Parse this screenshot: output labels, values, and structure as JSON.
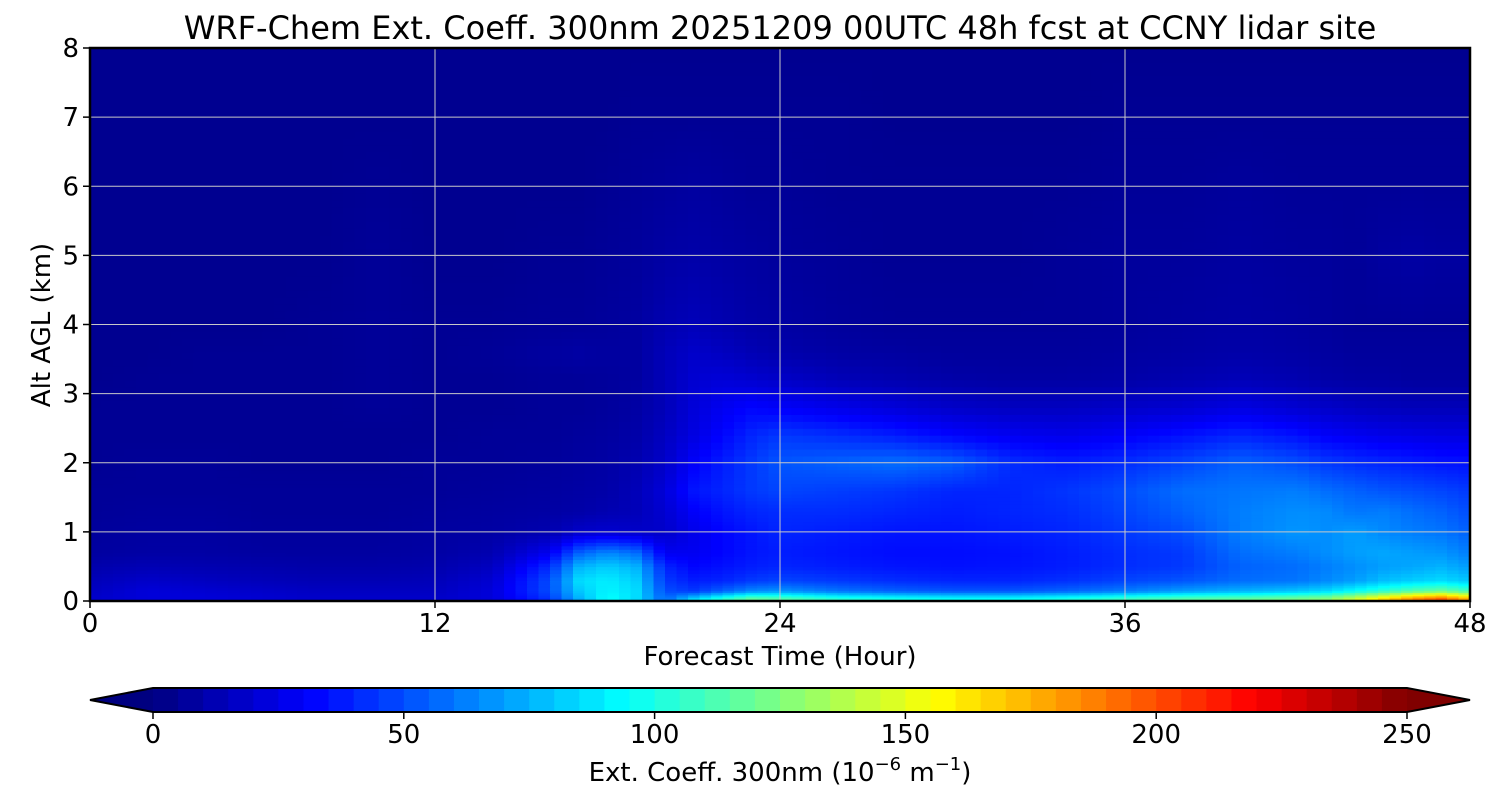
{
  "chart_data": {
    "type": "heatmap",
    "title": "WRF-Chem Ext. Coeff. 300nm  20251209 00UTC 48h fcst at CCNY lidar site",
    "xlabel": "Forecast Time (Hour)",
    "ylabel": "Alt AGL (km)",
    "xlim": [
      0,
      48
    ],
    "ylim": [
      0,
      8
    ],
    "xticks": [
      0,
      12,
      24,
      36,
      48
    ],
    "yticks": [
      0,
      1,
      2,
      3,
      4,
      5,
      6,
      7,
      8
    ],
    "grid": true,
    "colormap": "jet",
    "colorbar": {
      "label_main": "Ext. Coeff. 300nm  (10",
      "label_exp1": "−6",
      "label_mid": " m",
      "label_exp2": "−1",
      "label_end": ")",
      "ticks": [
        0,
        50,
        100,
        150,
        200,
        250
      ],
      "range": [
        0,
        250
      ],
      "extend": "both",
      "orientation": "horizontal"
    },
    "x": [
      0,
      2,
      4,
      6,
      8,
      10,
      12,
      14,
      16,
      17,
      18,
      19,
      20,
      21,
      22,
      23,
      24,
      26,
      28,
      30,
      32,
      34,
      36,
      38,
      40,
      42,
      43,
      44,
      45,
      46,
      47,
      48
    ],
    "y": [
      0,
      0.05,
      0.15,
      0.3,
      0.5,
      0.7,
      1.0,
      1.3,
      1.6,
      2.0,
      2.4,
      2.8,
      3.2,
      3.6,
      4.0,
      5.0,
      6.0,
      7.0,
      8.0
    ],
    "values": [
      [
        18,
        22,
        22,
        20,
        18,
        18,
        18,
        20,
        40,
        70,
        95,
        85,
        55,
        95,
        110,
        120,
        118,
        110,
        105,
        100,
        100,
        105,
        112,
        118,
        120,
        125,
        130,
        150,
        175,
        195,
        215,
        180
      ],
      [
        18,
        22,
        22,
        20,
        18,
        18,
        18,
        22,
        45,
        75,
        95,
        85,
        55,
        80,
        100,
        115,
        112,
        100,
        95,
        92,
        92,
        97,
        105,
        112,
        115,
        120,
        125,
        140,
        160,
        180,
        190,
        170
      ],
      [
        16,
        22,
        20,
        18,
        16,
        16,
        16,
        22,
        50,
        80,
        92,
        85,
        50,
        45,
        55,
        65,
        68,
        60,
        55,
        52,
        52,
        56,
        62,
        70,
        75,
        80,
        85,
        95,
        105,
        115,
        120,
        110
      ],
      [
        14,
        18,
        16,
        14,
        13,
        13,
        14,
        20,
        50,
        85,
        90,
        82,
        45,
        38,
        40,
        45,
        48,
        45,
        42,
        40,
        40,
        43,
        48,
        52,
        58,
        60,
        65,
        70,
        78,
        82,
        85,
        80
      ],
      [
        11,
        13,
        12,
        11,
        10,
        10,
        11,
        16,
        42,
        75,
        82,
        75,
        40,
        32,
        35,
        38,
        40,
        38,
        36,
        35,
        36,
        38,
        42,
        45,
        55,
        58,
        62,
        66,
        70,
        72,
        75,
        70
      ],
      [
        8,
        9,
        9,
        8,
        8,
        8,
        9,
        12,
        28,
        55,
        65,
        58,
        28,
        28,
        32,
        36,
        38,
        36,
        34,
        34,
        35,
        38,
        42,
        45,
        58,
        62,
        66,
        70,
        72,
        70,
        68,
        62
      ],
      [
        7,
        8,
        8,
        7,
        7,
        7,
        8,
        9,
        12,
        18,
        20,
        18,
        18,
        26,
        32,
        36,
        40,
        38,
        36,
        36,
        38,
        40,
        45,
        50,
        62,
        68,
        66,
        70,
        65,
        62,
        60,
        55
      ],
      [
        6,
        7,
        7,
        6,
        6,
        6,
        7,
        8,
        9,
        10,
        12,
        14,
        20,
        30,
        36,
        40,
        42,
        42,
        40,
        38,
        40,
        42,
        48,
        55,
        62,
        66,
        65,
        60,
        62,
        58,
        55,
        50
      ],
      [
        6,
        6,
        6,
        6,
        6,
        6,
        6,
        7,
        8,
        9,
        10,
        14,
        22,
        36,
        40,
        45,
        48,
        46,
        44,
        40,
        40,
        44,
        50,
        58,
        60,
        62,
        58,
        55,
        52,
        50,
        48,
        45
      ],
      [
        5,
        6,
        6,
        5,
        5,
        5,
        6,
        6,
        7,
        8,
        9,
        12,
        18,
        30,
        38,
        45,
        52,
        55,
        58,
        54,
        42,
        38,
        42,
        48,
        55,
        50,
        45,
        42,
        40,
        38,
        36,
        35
      ],
      [
        5,
        5,
        5,
        5,
        5,
        5,
        5,
        6,
        6,
        7,
        8,
        10,
        16,
        24,
        32,
        40,
        45,
        42,
        38,
        32,
        28,
        26,
        30,
        35,
        40,
        35,
        30,
        28,
        26,
        25,
        24,
        24
      ],
      [
        5,
        5,
        5,
        5,
        5,
        6,
        5,
        5,
        6,
        6,
        7,
        9,
        14,
        22,
        28,
        32,
        30,
        26,
        22,
        18,
        16,
        16,
        18,
        20,
        24,
        20,
        18,
        16,
        15,
        14,
        14,
        14
      ],
      [
        4,
        5,
        5,
        5,
        5,
        6,
        5,
        5,
        6,
        6,
        7,
        8,
        14,
        20,
        22,
        20,
        18,
        14,
        12,
        10,
        9,
        9,
        10,
        12,
        14,
        12,
        10,
        9,
        9,
        8,
        8,
        8
      ],
      [
        4,
        4,
        5,
        5,
        5,
        6,
        5,
        6,
        8,
        9,
        8,
        8,
        14,
        18,
        16,
        13,
        11,
        9,
        8,
        7,
        7,
        7,
        8,
        9,
        10,
        9,
        8,
        7,
        7,
        7,
        7,
        7
      ],
      [
        4,
        4,
        4,
        4,
        5,
        6,
        5,
        5,
        6,
        6,
        7,
        8,
        12,
        14,
        12,
        10,
        9,
        7,
        6,
        6,
        6,
        6,
        7,
        8,
        9,
        8,
        7,
        6,
        6,
        6,
        6,
        6
      ],
      [
        4,
        4,
        4,
        4,
        4,
        6,
        4,
        4,
        5,
        5,
        6,
        7,
        9,
        10,
        9,
        8,
        7,
        6,
        5,
        5,
        5,
        6,
        7,
        7,
        8,
        7,
        7,
        6,
        8,
        9,
        8,
        8
      ],
      [
        4,
        4,
        4,
        4,
        4,
        5,
        4,
        4,
        4,
        4,
        5,
        6,
        7,
        8,
        7,
        6,
        6,
        5,
        5,
        5,
        5,
        5,
        6,
        6,
        7,
        6,
        6,
        6,
        6,
        6,
        6,
        6
      ],
      [
        4,
        4,
        4,
        4,
        4,
        4,
        4,
        4,
        4,
        4,
        4,
        5,
        5,
        5,
        5,
        5,
        5,
        5,
        4,
        4,
        4,
        4,
        5,
        5,
        5,
        5,
        5,
        5,
        5,
        5,
        5,
        5
      ],
      [
        4,
        4,
        4,
        4,
        4,
        4,
        4,
        4,
        4,
        4,
        4,
        4,
        4,
        4,
        4,
        4,
        4,
        4,
        4,
        4,
        4,
        4,
        4,
        4,
        4,
        4,
        4,
        4,
        4,
        4,
        4,
        4
      ]
    ]
  }
}
